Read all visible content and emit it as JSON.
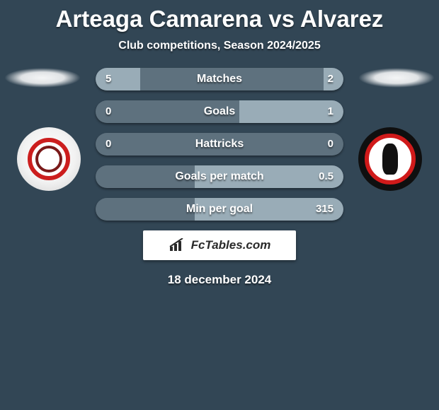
{
  "title": "Arteaga Camarena vs Alvarez",
  "title_fontsize": 33,
  "title_color": "#ffffff",
  "subtitle": "Club competitions, Season 2024/2025",
  "subtitle_fontsize": 16,
  "date": "18 december 2024",
  "date_fontsize": 17,
  "brand": "FcTables.com",
  "brand_fontsize": 17,
  "background_color": "#324655",
  "bar_track_color": "rgba(190,205,215,0.32)",
  "bar_fill_color": "rgba(160,178,190,0.9)",
  "bar_label_fontsize": 16,
  "bar_value_fontsize": 15,
  "bars": [
    {
      "label": "Matches",
      "left": "5",
      "right": "2",
      "left_pct": 18,
      "right_pct": 8
    },
    {
      "label": "Goals",
      "left": "0",
      "right": "1",
      "left_pct": 0,
      "right_pct": 42
    },
    {
      "label": "Hattricks",
      "left": "0",
      "right": "0",
      "left_pct": 0,
      "right_pct": 0
    },
    {
      "label": "Goals per match",
      "left": "",
      "right": "0.5",
      "left_pct": 0,
      "right_pct": 60
    },
    {
      "label": "Min per goal",
      "left": "",
      "right": "315",
      "left_pct": 0,
      "right_pct": 60
    }
  ]
}
